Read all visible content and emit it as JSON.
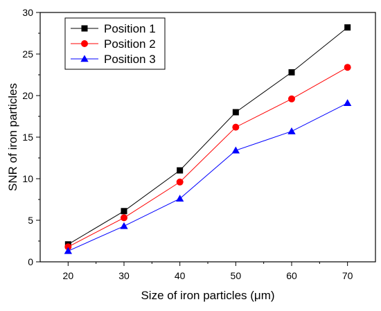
{
  "chart_data": {
    "type": "line",
    "title": "",
    "xlabel": "Size of iron particles (μm)",
    "ylabel": "SNR of iron particles",
    "x": [
      20,
      30,
      40,
      50,
      60,
      70
    ],
    "xlim": [
      15,
      75
    ],
    "ylim": [
      0,
      30
    ],
    "xticks": [
      20,
      30,
      40,
      50,
      60,
      70
    ],
    "yticks": [
      0,
      5,
      10,
      15,
      20,
      25,
      30
    ],
    "grid": false,
    "legend_position": "top-left",
    "series": [
      {
        "name": "Position 1",
        "values": [
          2.1,
          6.1,
          11.0,
          18.0,
          22.8,
          28.2
        ],
        "color": "#000000",
        "marker": "square"
      },
      {
        "name": "Position 2",
        "values": [
          1.8,
          5.3,
          9.6,
          16.2,
          19.6,
          23.4
        ],
        "color": "#ff0000",
        "marker": "circle"
      },
      {
        "name": "Position 3",
        "values": [
          1.3,
          4.3,
          7.6,
          13.4,
          15.7,
          19.1
        ],
        "color": "#0000ff",
        "marker": "triangle"
      }
    ]
  }
}
